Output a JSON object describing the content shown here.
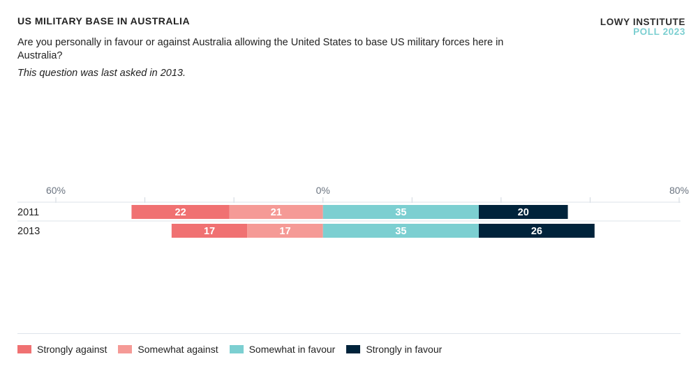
{
  "header": {
    "title": "US MILITARY BASE IN AUSTRALIA",
    "question": "Are you personally in favour or against Australia allowing the United States to base US military forces here in Australia?",
    "note": "This question was last asked in 2013.",
    "brand_line1": "LOWY INSTITUTE",
    "brand_line2": "POLL 2023"
  },
  "chart_data": {
    "type": "bar",
    "orientation": "horizontal-diverging-stacked",
    "categories": [
      "2011",
      "2013"
    ],
    "xlim": [
      -60,
      80
    ],
    "tick_labels": [
      {
        "value": -60,
        "label": "60%"
      },
      {
        "value": 0,
        "label": "0%"
      },
      {
        "value": 80,
        "label": "80%"
      }
    ],
    "ticks": [
      -60,
      -40,
      -20,
      0,
      20,
      40,
      60,
      80
    ],
    "series": [
      {
        "name": "Strongly against",
        "side": "negative",
        "color": "#f07172",
        "values": [
          22,
          17
        ]
      },
      {
        "name": "Somewhat against",
        "side": "negative",
        "color": "#f59a96",
        "values": [
          21,
          17
        ]
      },
      {
        "name": "Somewhat in favour",
        "side": "positive",
        "color": "#7ccfd1",
        "values": [
          35,
          35
        ]
      },
      {
        "name": "Strongly in favour",
        "side": "positive",
        "color": "#00233b",
        "values": [
          20,
          26
        ]
      }
    ],
    "legend_position": "bottom-left"
  }
}
